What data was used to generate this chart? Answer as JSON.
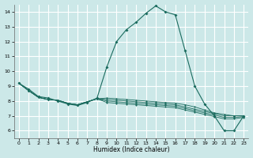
{
  "xlabel": "Humidex (Indice chaleur)",
  "bg_color": "#cce8e8",
  "grid_color": "#ffffff",
  "line_color": "#1a6b5e",
  "marker_color": "#1a6b5e",
  "xlim": [
    -0.5,
    23.5
  ],
  "ylim": [
    5.5,
    14.5
  ],
  "yticks": [
    6,
    7,
    8,
    9,
    10,
    11,
    12,
    13,
    14
  ],
  "xticks": [
    0,
    1,
    2,
    3,
    4,
    5,
    6,
    7,
    8,
    9,
    10,
    11,
    12,
    13,
    14,
    15,
    16,
    17,
    18,
    19,
    20,
    21,
    22,
    23
  ],
  "main_curve": [
    9.2,
    8.8,
    8.3,
    8.2,
    8.0,
    7.8,
    7.7,
    7.9,
    8.2,
    10.3,
    12.0,
    12.8,
    13.3,
    13.9,
    14.4,
    14.0,
    13.8,
    11.4,
    9.0,
    7.8,
    7.0,
    6.0,
    6.0,
    7.0
  ],
  "band_curves": [
    [
      9.2,
      8.7,
      8.25,
      8.1,
      8.05,
      7.85,
      7.75,
      7.95,
      8.15,
      8.2,
      8.15,
      8.1,
      8.05,
      8.0,
      7.95,
      7.9,
      7.85,
      7.75,
      7.6,
      7.4,
      7.2,
      7.1,
      7.0,
      7.0
    ],
    [
      9.2,
      8.7,
      8.25,
      8.1,
      8.05,
      7.85,
      7.75,
      7.95,
      8.15,
      8.1,
      8.05,
      8.0,
      7.95,
      7.9,
      7.85,
      7.8,
      7.75,
      7.6,
      7.45,
      7.3,
      7.15,
      7.0,
      7.0,
      7.0
    ],
    [
      9.2,
      8.7,
      8.25,
      8.1,
      8.05,
      7.85,
      7.75,
      7.95,
      8.15,
      8.0,
      7.95,
      7.9,
      7.85,
      7.8,
      7.75,
      7.7,
      7.65,
      7.5,
      7.35,
      7.2,
      7.05,
      6.9,
      6.9,
      6.95
    ],
    [
      9.2,
      8.7,
      8.25,
      8.1,
      8.05,
      7.85,
      7.75,
      7.95,
      8.15,
      7.9,
      7.85,
      7.8,
      7.75,
      7.7,
      7.65,
      7.6,
      7.55,
      7.4,
      7.25,
      7.1,
      6.95,
      6.8,
      6.8,
      6.9
    ]
  ]
}
